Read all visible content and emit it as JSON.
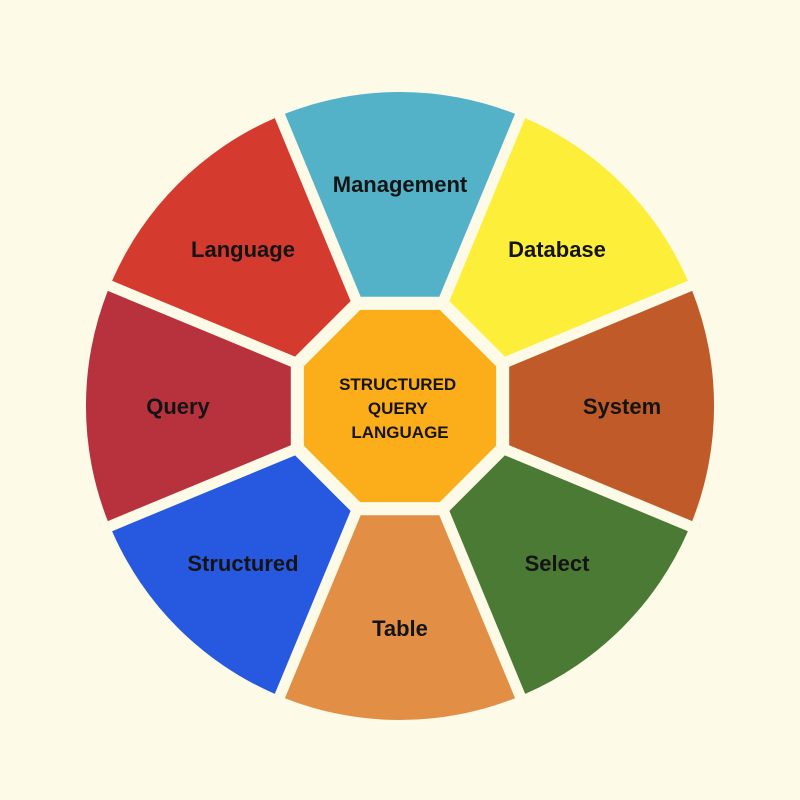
{
  "background_color": "#fdfbe8",
  "center": {
    "lines": [
      "STRUCTURED",
      "QUERY",
      "LANGUAGE"
    ],
    "color": "#fbae1a"
  },
  "segments": [
    {
      "label": "Management",
      "color": "#53b2c8"
    },
    {
      "label": "Database",
      "color": "#fdee3a"
    },
    {
      "label": "System",
      "color": "#c05b29"
    },
    {
      "label": "Select",
      "color": "#4a7a33"
    },
    {
      "label": "Table",
      "color": "#e28f45"
    },
    {
      "label": "Structured",
      "color": "#2759e0"
    },
    {
      "label": "Query",
      "color": "#b8323e"
    },
    {
      "label": "Language",
      "color": "#d43a2e"
    }
  ]
}
